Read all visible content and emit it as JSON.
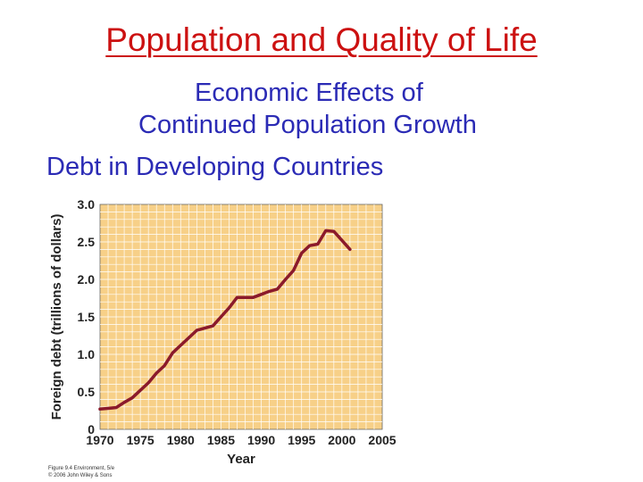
{
  "slide": {
    "title": "Population and Quality of Life",
    "subtitle_line1": "Economic Effects of",
    "subtitle_line2": "Continued Population Growth",
    "subtitle_line3": "Debt in Developing Countries",
    "figure_credit_line1": "Figure 9.4 Environment, 5/e",
    "figure_credit_line2": "© 2006 John Wiley & Sons"
  },
  "colors": {
    "title": "#cc1111",
    "subtitle": "#2b2bb5",
    "plot_background": "#f7d088",
    "grid": "#ffffff",
    "line": "#8b1a2b"
  },
  "chart_data": {
    "type": "line",
    "title": "",
    "xlabel": "Year",
    "ylabel": "Foreign debt (trillions of dollars)",
    "xlim": [
      1970,
      2005
    ],
    "ylim": [
      0,
      3.0
    ],
    "xticks": [
      1970,
      1975,
      1980,
      1985,
      1990,
      1995,
      2000,
      2005
    ],
    "yticks": [
      0,
      0.5,
      1.0,
      1.5,
      2.0,
      2.5,
      3.0
    ],
    "ytick_labels": [
      "0",
      "0.5",
      "1.0",
      "1.5",
      "2.0",
      "2.5",
      "3.0"
    ],
    "grid": true,
    "series": [
      {
        "x": [
          1970,
          1971,
          1972,
          1973,
          1974,
          1975,
          1976,
          1977,
          1978,
          1979,
          1980,
          1981,
          1982,
          1983,
          1984,
          1985,
          1986,
          1987,
          1988,
          1989,
          1990,
          1991,
          1992,
          1993,
          1994,
          1995,
          1996,
          1997,
          1998,
          1999,
          2000,
          2001
        ],
        "y": [
          0.27,
          0.28,
          0.29,
          0.36,
          0.42,
          0.52,
          0.62,
          0.75,
          0.85,
          1.02,
          1.12,
          1.22,
          1.32,
          1.35,
          1.38,
          1.5,
          1.62,
          1.76,
          1.76,
          1.76,
          1.8,
          1.84,
          1.87,
          2.0,
          2.12,
          2.35,
          2.45,
          2.47,
          2.65,
          2.64,
          2.52,
          2.4
        ]
      }
    ]
  }
}
